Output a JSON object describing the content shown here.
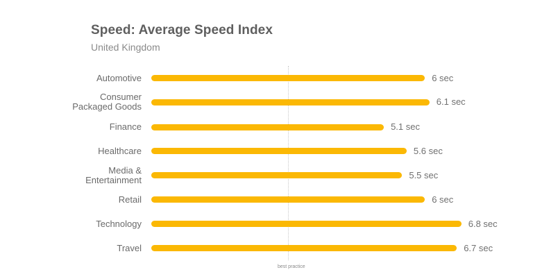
{
  "chart_data": {
    "type": "bar",
    "orientation": "horizontal",
    "title": "Speed: Average Speed Index",
    "subtitle": "United Kingdom",
    "categories": [
      "Automotive",
      "Consumer Packaged Goods",
      "Finance",
      "Healthcare",
      "Media & Entertainment",
      "Retail",
      "Technology",
      "Travel"
    ],
    "category_lines": [
      [
        "Automotive"
      ],
      [
        "Consumer",
        "Packaged Goods"
      ],
      [
        "Finance"
      ],
      [
        "Healthcare"
      ],
      [
        "Media &",
        "Entertainment"
      ],
      [
        "Retail"
      ],
      [
        "Technology"
      ],
      [
        "Travel"
      ]
    ],
    "values": [
      6,
      6.1,
      5.1,
      5.6,
      5.5,
      6,
      6.8,
      6.7
    ],
    "value_labels": [
      "6 sec",
      "6.1 sec",
      "5.1 sec",
      "5.6 sec",
      "5.5 sec",
      "6 sec",
      "6.8 sec",
      "6.7 sec"
    ],
    "unit": "sec",
    "xlabel": "",
    "ylabel": "",
    "xlim": [
      0,
      7
    ],
    "grid": false,
    "legend": null,
    "annotations": [
      {
        "type": "reference_line",
        "x": 3,
        "label": "best practice"
      }
    ],
    "bar_color": "#fbb804"
  }
}
